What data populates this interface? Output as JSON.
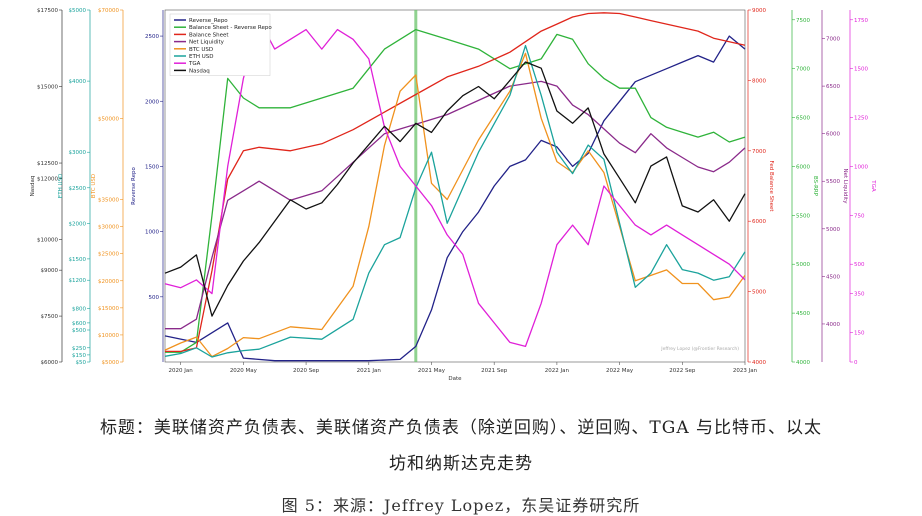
{
  "chart_data": {
    "type": "line",
    "xlabel": "Date",
    "x_ticks": [
      "2020 Jan",
      "2020 May",
      "2020 Sep",
      "2021 Jan",
      "2021 May",
      "2021 Sep",
      "2022 Jan",
      "2022 May",
      "2022 Sep",
      "2023 Jan"
    ],
    "x_range": [
      "2019-12",
      "2023-01"
    ],
    "vline": {
      "x": "2021-04",
      "color": "#6cc46c"
    },
    "watermark": "Jeffrey Lopez (@Frontier Research)",
    "legend_position": "top-left",
    "axes": [
      {
        "id": "nasdaq",
        "label": "Nasdaq",
        "color": "#333333",
        "side": "left",
        "ticks": [
          "$6000",
          "$7500",
          "$9000",
          "$10000",
          "$12000",
          "$12500",
          "$15000",
          "$17500"
        ],
        "range": [
          6000,
          17500
        ]
      },
      {
        "id": "eth",
        "label": "ETH USD",
        "color": "#1ba39c",
        "side": "left",
        "ticks": [
          "$50",
          "$150",
          "$250",
          "$500",
          "$600",
          "$800",
          "$1200",
          "$1500",
          "$2000",
          "$2500",
          "$3000",
          "$4000",
          "$5000"
        ],
        "range": [
          50,
          5000
        ]
      },
      {
        "id": "btc",
        "label": "BTC USD",
        "color": "#f0921e",
        "side": "left",
        "ticks": [
          "$5000",
          "$10000",
          "$15000",
          "$20000",
          "$25000",
          "$30000",
          "$35000",
          "$50000",
          "$70000"
        ],
        "range": [
          5000,
          70000
        ]
      },
      {
        "id": "reverse_repo",
        "label": "Reverse Repo",
        "color": "#222288",
        "side": "left",
        "ticks": [
          "500",
          "1000",
          "1500",
          "2000",
          "2500"
        ],
        "range": [
          0,
          2700
        ]
      },
      {
        "id": "fed_bs",
        "label": "Fed Balance Sheet",
        "color": "#e0261b",
        "side": "right",
        "ticks": [
          "4000",
          "5000",
          "6000",
          "7000",
          "8000",
          "9000"
        ],
        "range": [
          4000,
          9000
        ]
      },
      {
        "id": "bs_minus_rr",
        "label": "BS-RRP",
        "color": "#2fb33a",
        "side": "right",
        "ticks": [
          "4000",
          "4500",
          "5000",
          "5500",
          "6000",
          "6500",
          "7000",
          "7500"
        ],
        "range": [
          4000,
          7600
        ]
      },
      {
        "id": "net_liq",
        "label": "Net Liquidity",
        "color": "#8a2a8a",
        "side": "right",
        "ticks": [
          "4000",
          "4500",
          "5000",
          "5500",
          "6000",
          "6500",
          "7000"
        ],
        "range": [
          3600,
          7300
        ]
      },
      {
        "id": "tga",
        "label": "TGA",
        "color": "#e020d8",
        "side": "right",
        "ticks": [
          "0",
          "150",
          "350",
          "500",
          "750",
          "1000",
          "1250",
          "1500",
          "1750"
        ],
        "range": [
          0,
          1800
        ]
      }
    ],
    "series": [
      {
        "name": "Reverse_Repo",
        "color": "#222288",
        "x": [
          "2019-12",
          "2020-02",
          "2020-04",
          "2020-05",
          "2020-07",
          "2020-09",
          "2020-11",
          "2021-01",
          "2021-03",
          "2021-04",
          "2021-05",
          "2021-06",
          "2021-07",
          "2021-08",
          "2021-09",
          "2021-10",
          "2021-11",
          "2021-12",
          "2022-01",
          "2022-02",
          "2022-03",
          "2022-04",
          "2022-05",
          "2022-06",
          "2022-07",
          "2022-08",
          "2022-09",
          "2022-10",
          "2022-11",
          "2022-12",
          "2023-01"
        ],
        "y": [
          200,
          150,
          300,
          30,
          10,
          10,
          10,
          10,
          20,
          120,
          400,
          800,
          1000,
          1150,
          1350,
          1500,
          1550,
          1700,
          1650,
          1500,
          1600,
          1850,
          2000,
          2150,
          2200,
          2250,
          2300,
          2350,
          2300,
          2500,
          2400
        ]
      },
      {
        "name": "Balance Sheet - Reverse Repo",
        "color": "#2fb33a",
        "x": [
          "2019-12",
          "2020-01",
          "2020-02",
          "2020-03",
          "2020-04",
          "2020-05",
          "2020-06",
          "2020-08",
          "2020-10",
          "2020-12",
          "2021-02",
          "2021-04",
          "2021-06",
          "2021-08",
          "2021-10",
          "2021-12",
          "2022-01",
          "2022-02",
          "2022-03",
          "2022-04",
          "2022-05",
          "2022-06",
          "2022-07",
          "2022-08",
          "2022-09",
          "2022-10",
          "2022-11",
          "2022-12",
          "2023-01"
        ],
        "y": [
          4100,
          4100,
          4200,
          5500,
          6900,
          6700,
          6600,
          6600,
          6700,
          6800,
          7200,
          7400,
          7300,
          7200,
          7000,
          7100,
          7350,
          7300,
          7050,
          6900,
          6800,
          6800,
          6500,
          6400,
          6350,
          6300,
          6350,
          6250,
          6300
        ]
      },
      {
        "name": "Balance Sheet",
        "color": "#e0261b",
        "x": [
          "2019-12",
          "2020-01",
          "2020-02",
          "2020-03",
          "2020-04",
          "2020-05",
          "2020-06",
          "2020-08",
          "2020-10",
          "2020-12",
          "2021-02",
          "2021-04",
          "2021-06",
          "2021-08",
          "2021-10",
          "2021-12",
          "2022-01",
          "2022-02",
          "2022-03",
          "2022-04",
          "2022-05",
          "2022-06",
          "2022-07",
          "2022-08",
          "2022-09",
          "2022-10",
          "2022-11",
          "2022-12",
          "2023-01"
        ],
        "y": [
          4150,
          4150,
          4200,
          5300,
          6600,
          7000,
          7050,
          7000,
          7100,
          7300,
          7550,
          7800,
          8050,
          8200,
          8400,
          8700,
          8800,
          8900,
          8950,
          8960,
          8950,
          8900,
          8850,
          8800,
          8750,
          8700,
          8600,
          8550,
          8500
        ]
      },
      {
        "name": "Net Liquidity",
        "color": "#8a2a8a",
        "x": [
          "2019-12",
          "2020-01",
          "2020-02",
          "2020-03",
          "2020-04",
          "2020-05",
          "2020-06",
          "2020-08",
          "2020-10",
          "2020-12",
          "2021-02",
          "2021-04",
          "2021-06",
          "2021-08",
          "2021-10",
          "2021-12",
          "2022-01",
          "2022-02",
          "2022-03",
          "2022-04",
          "2022-05",
          "2022-06",
          "2022-07",
          "2022-08",
          "2022-09",
          "2022-10",
          "2022-11",
          "2022-12",
          "2023-01"
        ],
        "y": [
          3950,
          3950,
          4050,
          4700,
          5300,
          5400,
          5500,
          5300,
          5400,
          5700,
          6000,
          6100,
          6200,
          6350,
          6500,
          6550,
          6500,
          6300,
          6200,
          6050,
          5900,
          5800,
          6000,
          5850,
          5750,
          5650,
          5600,
          5700,
          5850
        ]
      },
      {
        "name": "BTC USD",
        "color": "#f0921e",
        "x": [
          "2019-12",
          "2020-01",
          "2020-02",
          "2020-03",
          "2020-04",
          "2020-05",
          "2020-06",
          "2020-08",
          "2020-10",
          "2020-12",
          "2021-01",
          "2021-02",
          "2021-03",
          "2021-04",
          "2021-05",
          "2021-06",
          "2021-08",
          "2021-10",
          "2021-11",
          "2021-12",
          "2022-01",
          "2022-02",
          "2022-03",
          "2022-04",
          "2022-05",
          "2022-06",
          "2022-07",
          "2022-08",
          "2022-09",
          "2022-10",
          "2022-11",
          "2022-12",
          "2023-01"
        ],
        "y": [
          7200,
          8500,
          9600,
          6000,
          7500,
          9500,
          9300,
          11500,
          11000,
          19000,
          30000,
          45000,
          55000,
          58000,
          38000,
          35000,
          46000,
          55000,
          62000,
          50000,
          42000,
          40000,
          44000,
          40000,
          30000,
          20000,
          21000,
          22000,
          19500,
          19500,
          16500,
          17000,
          21000
        ]
      },
      {
        "name": "ETH USD",
        "color": "#1ba39c",
        "x": [
          "2019-12",
          "2020-01",
          "2020-02",
          "2020-03",
          "2020-04",
          "2020-05",
          "2020-06",
          "2020-08",
          "2020-10",
          "2020-12",
          "2021-01",
          "2021-02",
          "2021-03",
          "2021-04",
          "2021-05",
          "2021-06",
          "2021-08",
          "2021-10",
          "2021-11",
          "2021-12",
          "2022-01",
          "2022-02",
          "2022-03",
          "2022-04",
          "2022-05",
          "2022-06",
          "2022-07",
          "2022-08",
          "2022-09",
          "2022-10",
          "2022-11",
          "2022-12",
          "2023-01"
        ],
        "y": [
          130,
          170,
          250,
          120,
          180,
          210,
          230,
          400,
          370,
          650,
          1300,
          1700,
          1800,
          2500,
          3000,
          2000,
          3000,
          3800,
          4500,
          3800,
          3000,
          2700,
          3100,
          2900,
          2000,
          1100,
          1300,
          1700,
          1350,
          1300,
          1200,
          1250,
          1600
        ]
      },
      {
        "name": "TGA",
        "color": "#e020d8",
        "x": [
          "2019-12",
          "2020-01",
          "2020-02",
          "2020-03",
          "2020-04",
          "2020-05",
          "2020-06",
          "2020-07",
          "2020-08",
          "2020-09",
          "2020-10",
          "2020-11",
          "2020-12",
          "2021-01",
          "2021-02",
          "2021-03",
          "2021-04",
          "2021-05",
          "2021-06",
          "2021-07",
          "2021-08",
          "2021-09",
          "2021-10",
          "2021-11",
          "2021-12",
          "2022-01",
          "2022-02",
          "2022-03",
          "2022-04",
          "2022-05",
          "2022-06",
          "2022-07",
          "2022-08",
          "2022-09",
          "2022-10",
          "2022-11",
          "2022-12",
          "2023-01"
        ],
        "y": [
          400,
          380,
          420,
          350,
          1000,
          1450,
          1750,
          1600,
          1650,
          1700,
          1600,
          1700,
          1650,
          1550,
          1200,
          1000,
          900,
          800,
          650,
          550,
          300,
          200,
          100,
          80,
          300,
          600,
          700,
          600,
          900,
          800,
          700,
          650,
          700,
          650,
          600,
          550,
          500,
          420
        ]
      },
      {
        "name": "Nasdaq",
        "color": "#111111",
        "x": [
          "2019-12",
          "2020-01",
          "2020-02",
          "2020-03",
          "2020-04",
          "2020-05",
          "2020-06",
          "2020-07",
          "2020-08",
          "2020-09",
          "2020-10",
          "2020-11",
          "2020-12",
          "2021-01",
          "2021-02",
          "2021-03",
          "2021-04",
          "2021-05",
          "2021-06",
          "2021-07",
          "2021-08",
          "2021-09",
          "2021-10",
          "2021-11",
          "2021-12",
          "2022-01",
          "2022-02",
          "2022-03",
          "2022-04",
          "2022-05",
          "2022-06",
          "2022-07",
          "2022-08",
          "2022-09",
          "2022-10",
          "2022-11",
          "2022-12",
          "2023-01"
        ],
        "y": [
          8900,
          9100,
          9500,
          7500,
          8500,
          9300,
          9900,
          10600,
          11300,
          11000,
          11200,
          11800,
          12500,
          13100,
          13700,
          13200,
          13800,
          13500,
          14200,
          14700,
          15000,
          14600,
          15200,
          15800,
          15600,
          14200,
          13800,
          14300,
          12800,
          12000,
          11200,
          12400,
          12700,
          11100,
          10900,
          11300,
          10600,
          11500
        ]
      }
    ]
  },
  "caption": {
    "line1": "标题：美联储资产负债表、美联储资产负债表（除逆回购）、逆回购、TGA 与比特币、以太",
    "line2": "坊和纳斯达克走势",
    "line3": "图 5：来源：Jeffrey Lopez，东吴证券研究所"
  }
}
